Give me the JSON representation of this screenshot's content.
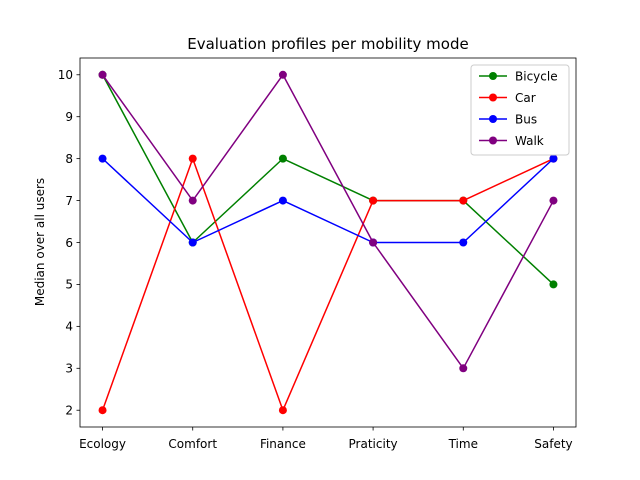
{
  "chart_data": {
    "type": "line",
    "title": "Evaluation profiles per mobility mode",
    "xlabel": "",
    "ylabel": "Median over all users",
    "categories": [
      "Ecology",
      "Comfort",
      "Finance",
      "Praticity",
      "Time",
      "Safety"
    ],
    "ylim": [
      1.6,
      10.4
    ],
    "yticks": [
      2,
      3,
      4,
      5,
      6,
      7,
      8,
      9,
      10
    ],
    "grid": false,
    "legend_position": "top-right",
    "series": [
      {
        "name": "Bicycle",
        "color": "#008000",
        "values": [
          10,
          6,
          8,
          7,
          7,
          5
        ]
      },
      {
        "name": "Car",
        "color": "#ff0000",
        "values": [
          2,
          8,
          2,
          7,
          7,
          8
        ]
      },
      {
        "name": "Bus",
        "color": "#0000ff",
        "values": [
          8,
          6,
          7,
          6,
          6,
          8
        ]
      },
      {
        "name": "Walk",
        "color": "#800080",
        "values": [
          10,
          7,
          10,
          6,
          3,
          7
        ]
      }
    ]
  }
}
